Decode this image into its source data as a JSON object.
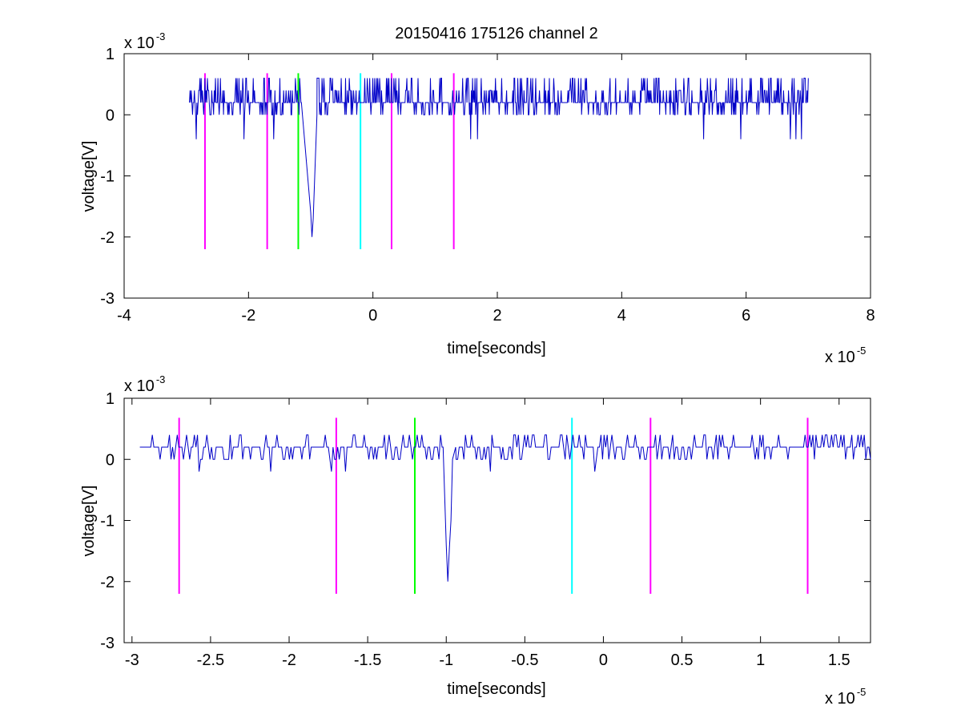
{
  "figure_title": "20150416 175126 channel 2",
  "chart_data": [
    {
      "type": "line",
      "name": "top-panel",
      "xlabel": "time[seconds]",
      "ylabel": "voltage[V]",
      "x_exponent": {
        "base": "x 10",
        "power": "-5"
      },
      "y_exponent": {
        "base": "x 10",
        "power": "-3"
      },
      "xlim": [
        -4,
        8
      ],
      "ylim": [
        -3,
        1
      ],
      "xticks": [
        -4,
        -2,
        0,
        2,
        4,
        6,
        8
      ],
      "xtick_labels": [
        "-4",
        "-2",
        "0",
        "2",
        "4",
        "6",
        "8"
      ],
      "yticks": [
        -3,
        -2,
        -1,
        0,
        1
      ],
      "ytick_labels": [
        "-3",
        "-2",
        "-1",
        "0",
        "1"
      ],
      "grid": false,
      "signal": {
        "color": "#0000c8",
        "x_range": [
          -2.95,
          7.0
        ],
        "points": 1000,
        "baseline": 0.2,
        "noise_levels": [
          0.0,
          0.2,
          0.4,
          0.6
        ],
        "occasional_min": -0.4,
        "spike": {
          "x": [
            -1.15,
            -1.0,
            -0.98,
            -0.96,
            -0.9
          ],
          "y": [
            0.2,
            -1.6,
            -2.0,
            -1.7,
            0.0
          ]
        }
      },
      "markers": [
        {
          "x": -2.7,
          "color": "#ff00ff",
          "y_range": [
            -2.2,
            0.68
          ]
        },
        {
          "x": -1.7,
          "color": "#ff00ff",
          "y_range": [
            -2.2,
            0.68
          ]
        },
        {
          "x": -1.2,
          "color": "#00ff00",
          "y_range": [
            -2.2,
            0.68
          ]
        },
        {
          "x": -0.2,
          "color": "#00ffff",
          "y_range": [
            -2.2,
            0.68
          ]
        },
        {
          "x": 0.3,
          "color": "#ff00ff",
          "y_range": [
            -2.2,
            0.68
          ]
        },
        {
          "x": 1.3,
          "color": "#ff00ff",
          "y_range": [
            -2.2,
            0.68
          ]
        }
      ]
    },
    {
      "type": "line",
      "name": "bottom-panel",
      "xlabel": "time[seconds]",
      "ylabel": "voltage[V]",
      "x_exponent": {
        "base": "x 10",
        "power": "-5"
      },
      "y_exponent": {
        "base": "x 10",
        "power": "-3"
      },
      "xlim": [
        -3.05,
        1.7
      ],
      "ylim": [
        -3,
        1
      ],
      "xticks": [
        -3,
        -2.5,
        -2,
        -1.5,
        -1,
        -0.5,
        0,
        0.5,
        1,
        1.5
      ],
      "xtick_labels": [
        "-3",
        "-2.5",
        "-2",
        "-1.5",
        "-1",
        "-0.5",
        "0",
        "0.5",
        "1",
        "1.5"
      ],
      "yticks": [
        -3,
        -2,
        -1,
        0,
        1
      ],
      "ytick_labels": [
        "-3",
        "-2",
        "-1",
        "0",
        "1"
      ],
      "grid": false,
      "signal": {
        "color": "#0000c8",
        "x_range": [
          -2.95,
          1.7
        ],
        "points": 470,
        "baseline": 0.2,
        "noise_levels": [
          0.0,
          0.2,
          0.4
        ],
        "occasional_min": -0.2,
        "spike": {
          "x": [
            -1.02,
            -1.0,
            -0.99,
            -0.98,
            -0.97,
            -0.96,
            -0.94
          ],
          "y": [
            0.2,
            -1.4,
            -2.0,
            -1.45,
            -1.0,
            0.0,
            0.2
          ]
        }
      },
      "markers": [
        {
          "x": -2.7,
          "color": "#ff00ff",
          "y_range": [
            -2.2,
            0.68
          ]
        },
        {
          "x": -1.7,
          "color": "#ff00ff",
          "y_range": [
            -2.2,
            0.68
          ]
        },
        {
          "x": -1.2,
          "color": "#00ff00",
          "y_range": [
            -2.2,
            0.68
          ]
        },
        {
          "x": -0.2,
          "color": "#00ffff",
          "y_range": [
            -2.2,
            0.68
          ]
        },
        {
          "x": 0.3,
          "color": "#ff00ff",
          "y_range": [
            -2.2,
            0.68
          ]
        },
        {
          "x": 1.3,
          "color": "#ff00ff",
          "y_range": [
            -2.2,
            0.68
          ]
        }
      ]
    }
  ]
}
